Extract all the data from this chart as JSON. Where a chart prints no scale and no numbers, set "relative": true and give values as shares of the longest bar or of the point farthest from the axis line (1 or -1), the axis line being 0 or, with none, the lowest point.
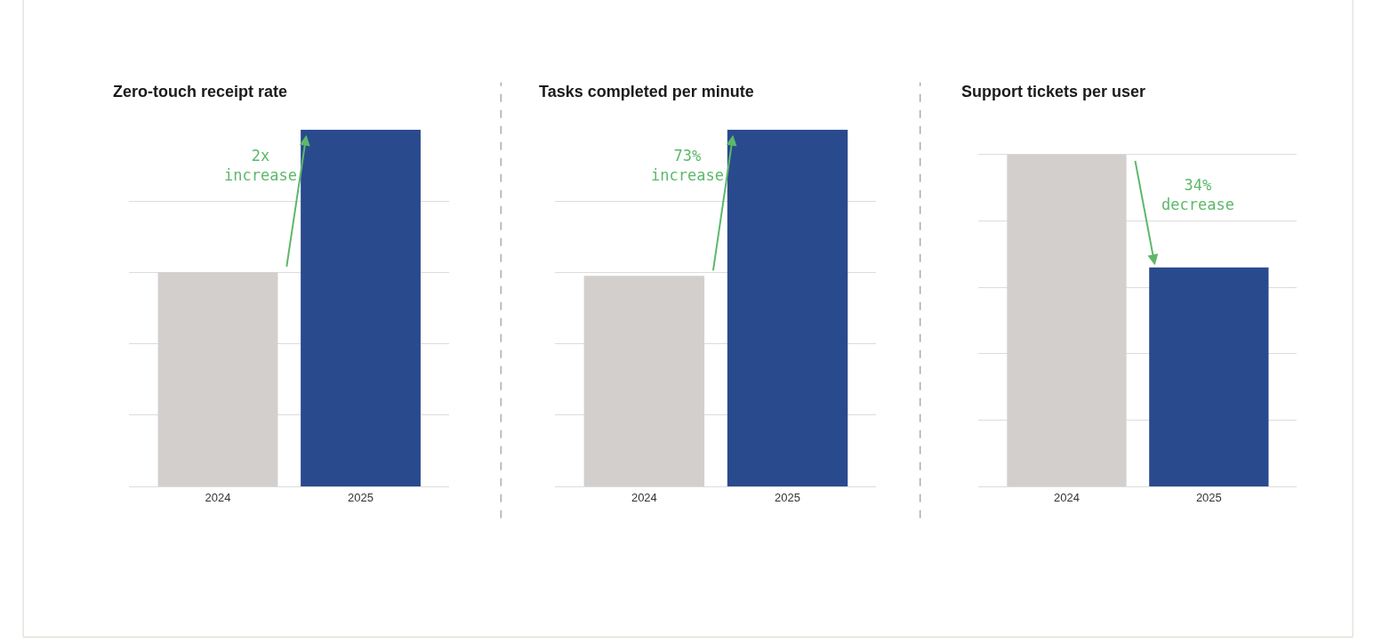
{
  "chart_data": [
    {
      "type": "bar",
      "title": "Zero-touch receipt rate",
      "categories": [
        "2024",
        "2025"
      ],
      "values": [
        0.6,
        1
      ],
      "colors": [
        "#d3cfcc",
        "#2a4a8e"
      ],
      "relative": true,
      "grid": "y",
      "annotations": [
        "2x\nincrease"
      ]
    },
    {
      "type": "bar",
      "title": "Tasks completed per minute",
      "categories": [
        "2024",
        "2025"
      ],
      "values": [
        0.59,
        1
      ],
      "colors": [
        "#d3cfcc",
        "#2a4a8e"
      ],
      "relative": true,
      "grid": "y",
      "annotations": [
        "73%\nincrease"
      ]
    },
    {
      "type": "bar",
      "title": "Support tickets per user",
      "categories": [
        "2024",
        "2025"
      ],
      "values": [
        1,
        0.66
      ],
      "colors": [
        "#d3cfcc",
        "#2a4a8e"
      ],
      "relative": true,
      "grid": "y",
      "annotations": [
        "34%\ndecrease"
      ]
    }
  ]
}
